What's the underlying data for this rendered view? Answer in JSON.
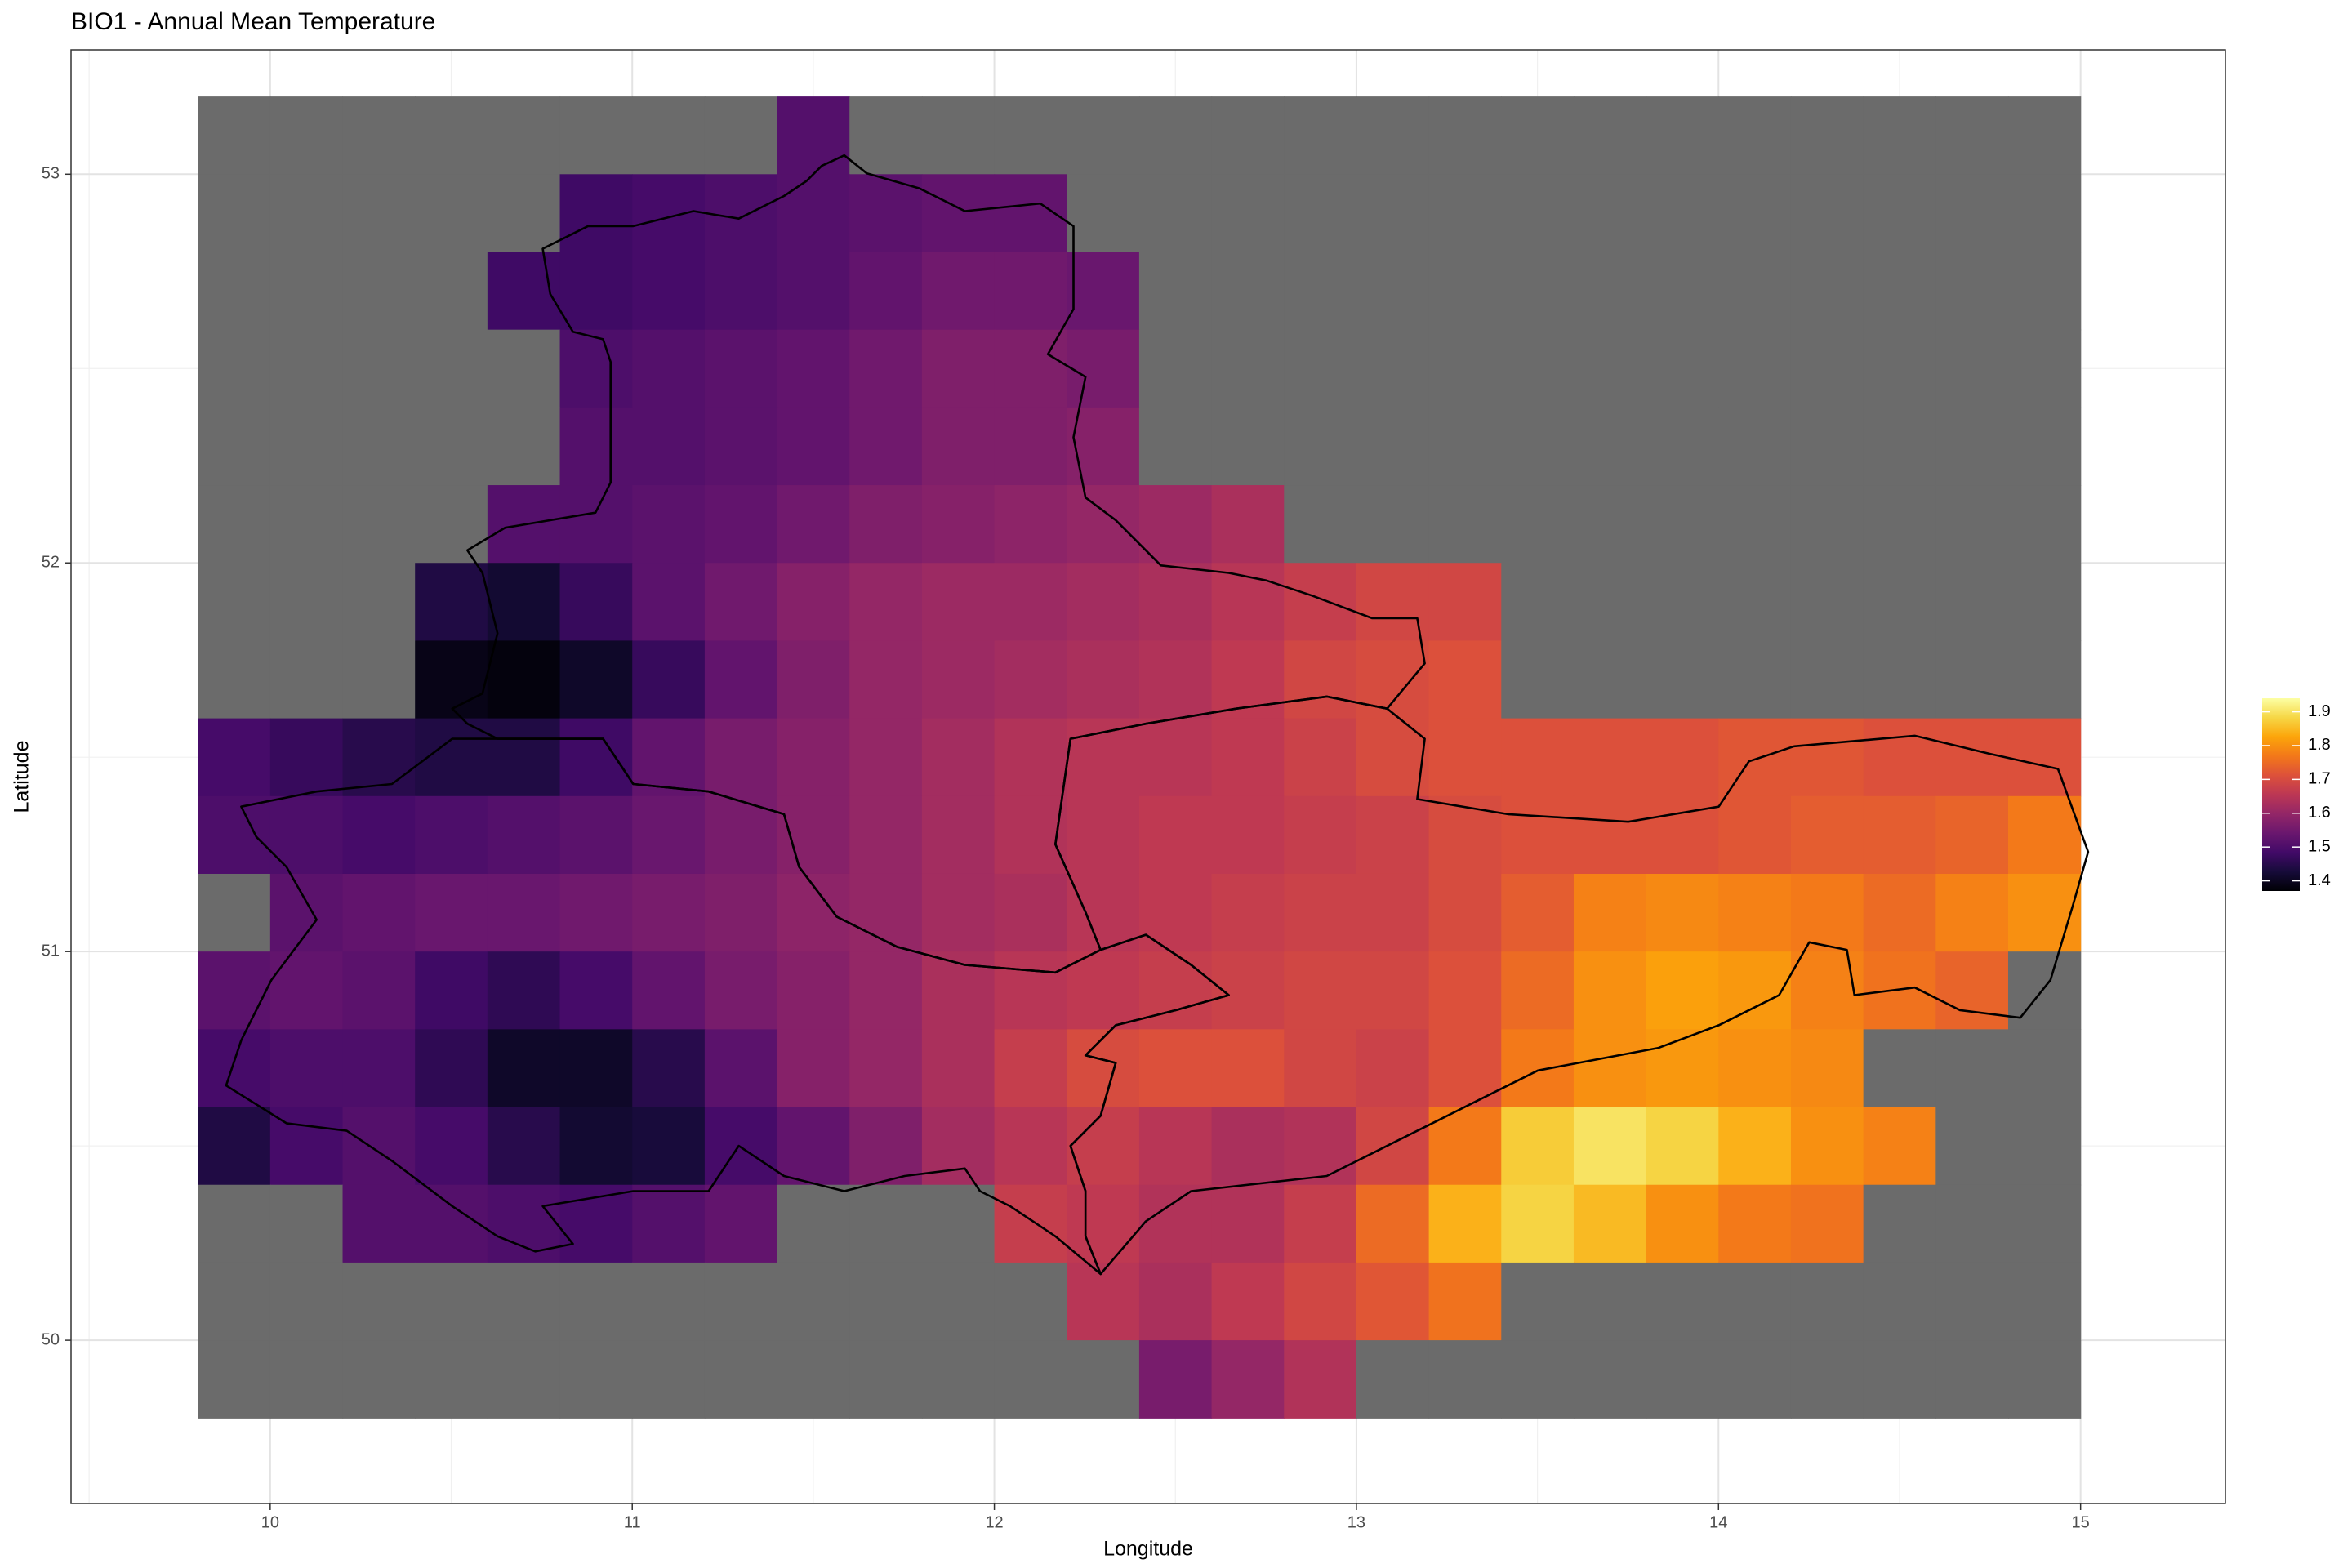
{
  "chart_data": {
    "type": "heatmap",
    "title": "BIO1 - Annual Mean Temperature",
    "x_label": "Longitude",
    "y_label": "Latitude",
    "x": [
      9.9,
      10.1,
      10.3,
      10.5,
      10.7,
      10.9,
      11.1,
      11.3,
      11.5,
      11.7,
      11.9,
      12.1,
      12.3,
      12.5,
      12.7,
      12.9,
      13.1,
      13.3,
      13.5,
      13.7,
      13.9,
      14.1,
      14.3,
      14.5,
      14.7,
      14.9
    ],
    "y": [
      53.1,
      52.9,
      52.7,
      52.5,
      52.3,
      52.1,
      51.9,
      51.7,
      51.5,
      51.3,
      51.1,
      50.9,
      50.7,
      50.5,
      50.3,
      50.1,
      49.9
    ],
    "values": [
      [
        null,
        null,
        null,
        null,
        null,
        null,
        null,
        null,
        1.51,
        null,
        null,
        null,
        null,
        null,
        null,
        null,
        null,
        null,
        null,
        null,
        null,
        null,
        null,
        null,
        null,
        null
      ],
      [
        null,
        null,
        null,
        null,
        null,
        1.48,
        1.49,
        1.5,
        1.51,
        1.52,
        1.53,
        1.53,
        null,
        null,
        null,
        null,
        null,
        null,
        null,
        null,
        null,
        null,
        null,
        null,
        null,
        null
      ],
      [
        null,
        null,
        null,
        null,
        1.48,
        1.48,
        1.49,
        1.5,
        1.51,
        1.53,
        1.55,
        1.55,
        1.54,
        null,
        null,
        null,
        null,
        null,
        null,
        null,
        null,
        null,
        null,
        null,
        null,
        null
      ],
      [
        null,
        null,
        null,
        null,
        null,
        1.5,
        1.51,
        1.52,
        1.53,
        1.55,
        1.57,
        1.57,
        1.56,
        null,
        null,
        null,
        null,
        null,
        null,
        null,
        null,
        null,
        null,
        null,
        null,
        null
      ],
      [
        null,
        null,
        null,
        null,
        null,
        1.51,
        1.51,
        1.52,
        1.53,
        1.55,
        1.57,
        1.57,
        1.58,
        null,
        null,
        null,
        null,
        null,
        null,
        null,
        null,
        null,
        null,
        null,
        null,
        null
      ],
      [
        null,
        null,
        null,
        null,
        1.51,
        1.51,
        1.52,
        1.53,
        1.55,
        1.57,
        1.58,
        1.59,
        1.6,
        1.61,
        1.63,
        null,
        null,
        null,
        null,
        null,
        null,
        null,
        null,
        null,
        null,
        null
      ],
      [
        null,
        null,
        null,
        1.44,
        1.42,
        1.47,
        1.52,
        1.55,
        1.58,
        1.6,
        1.61,
        1.61,
        1.62,
        1.63,
        1.65,
        1.67,
        1.69,
        1.69,
        null,
        null,
        null,
        null,
        null,
        null,
        null,
        null
      ],
      [
        null,
        null,
        null,
        1.39,
        1.38,
        1.41,
        1.47,
        1.53,
        1.57,
        1.6,
        1.61,
        1.62,
        1.63,
        1.64,
        1.66,
        1.69,
        1.7,
        1.71,
        null,
        null,
        null,
        null,
        null,
        null,
        null,
        null
      ],
      [
        1.49,
        1.47,
        1.45,
        1.44,
        1.44,
        1.48,
        1.53,
        1.56,
        1.58,
        1.6,
        1.62,
        1.64,
        1.65,
        1.65,
        1.66,
        1.68,
        1.7,
        1.71,
        1.71,
        1.71,
        1.71,
        1.72,
        1.72,
        1.71,
        1.71,
        1.71
      ],
      [
        1.5,
        1.5,
        1.49,
        1.5,
        1.51,
        1.52,
        1.54,
        1.56,
        1.58,
        1.6,
        1.62,
        1.64,
        1.65,
        1.66,
        1.66,
        1.67,
        1.68,
        1.7,
        1.71,
        1.71,
        1.71,
        1.72,
        1.73,
        1.73,
        1.74,
        1.77
      ],
      [
        null,
        1.52,
        1.53,
        1.54,
        1.54,
        1.55,
        1.56,
        1.57,
        1.59,
        1.6,
        1.62,
        1.63,
        1.65,
        1.66,
        1.67,
        1.68,
        1.68,
        1.7,
        1.73,
        1.78,
        1.79,
        1.78,
        1.77,
        1.75,
        1.78,
        1.8
      ],
      [
        1.52,
        1.53,
        1.52,
        1.48,
        1.46,
        1.49,
        1.53,
        1.56,
        1.58,
        1.6,
        1.63,
        1.65,
        1.66,
        1.67,
        1.68,
        1.69,
        1.69,
        1.71,
        1.75,
        1.8,
        1.82,
        1.81,
        1.78,
        1.76,
        1.74,
        null
      ],
      [
        1.49,
        1.5,
        1.5,
        1.46,
        1.41,
        1.41,
        1.45,
        1.52,
        1.58,
        1.6,
        1.63,
        1.67,
        1.7,
        1.71,
        1.71,
        1.69,
        1.68,
        1.71,
        1.77,
        1.8,
        1.81,
        1.8,
        1.79,
        null,
        null,
        null
      ],
      [
        1.44,
        1.49,
        1.51,
        1.49,
        1.45,
        1.42,
        1.43,
        1.49,
        1.53,
        1.57,
        1.62,
        1.65,
        1.67,
        1.65,
        1.63,
        1.64,
        1.69,
        1.77,
        1.87,
        1.9,
        1.88,
        1.84,
        1.8,
        1.78,
        null,
        null
      ],
      [
        null,
        null,
        1.51,
        1.51,
        1.5,
        1.49,
        1.51,
        1.53,
        null,
        null,
        null,
        1.67,
        1.66,
        1.64,
        1.64,
        1.67,
        1.75,
        1.84,
        1.88,
        1.85,
        1.8,
        1.77,
        1.76,
        null,
        null,
        null
      ],
      [
        null,
        null,
        null,
        null,
        null,
        null,
        null,
        null,
        null,
        null,
        null,
        null,
        1.65,
        1.63,
        1.66,
        1.69,
        1.72,
        1.76,
        null,
        null,
        null,
        null,
        null,
        null,
        null,
        null
      ],
      [
        null,
        null,
        null,
        null,
        null,
        null,
        null,
        null,
        null,
        null,
        null,
        null,
        null,
        1.56,
        1.6,
        1.64,
        null,
        null,
        null,
        null,
        null,
        null,
        null,
        null,
        null,
        null
      ]
    ],
    "colormap": "inferno",
    "na_color": "#6b6b6b",
    "clim": [
      1.37,
      1.94
    ],
    "legend_ticks": [
      1.4,
      1.5,
      1.6,
      1.7,
      1.8,
      1.9
    ],
    "xlim": [
      9.45,
      15.4
    ],
    "ylim": [
      49.58,
      53.32
    ],
    "xticks": [
      10,
      11,
      12,
      13,
      14,
      15
    ],
    "yticks": [
      50,
      51,
      52,
      53
    ],
    "xminor": [
      9.5,
      10.5,
      11.5,
      12.5,
      13.5,
      14.5
    ],
    "yminor": [
      50.5,
      51.5,
      52.5
    ],
    "grid": true
  }
}
